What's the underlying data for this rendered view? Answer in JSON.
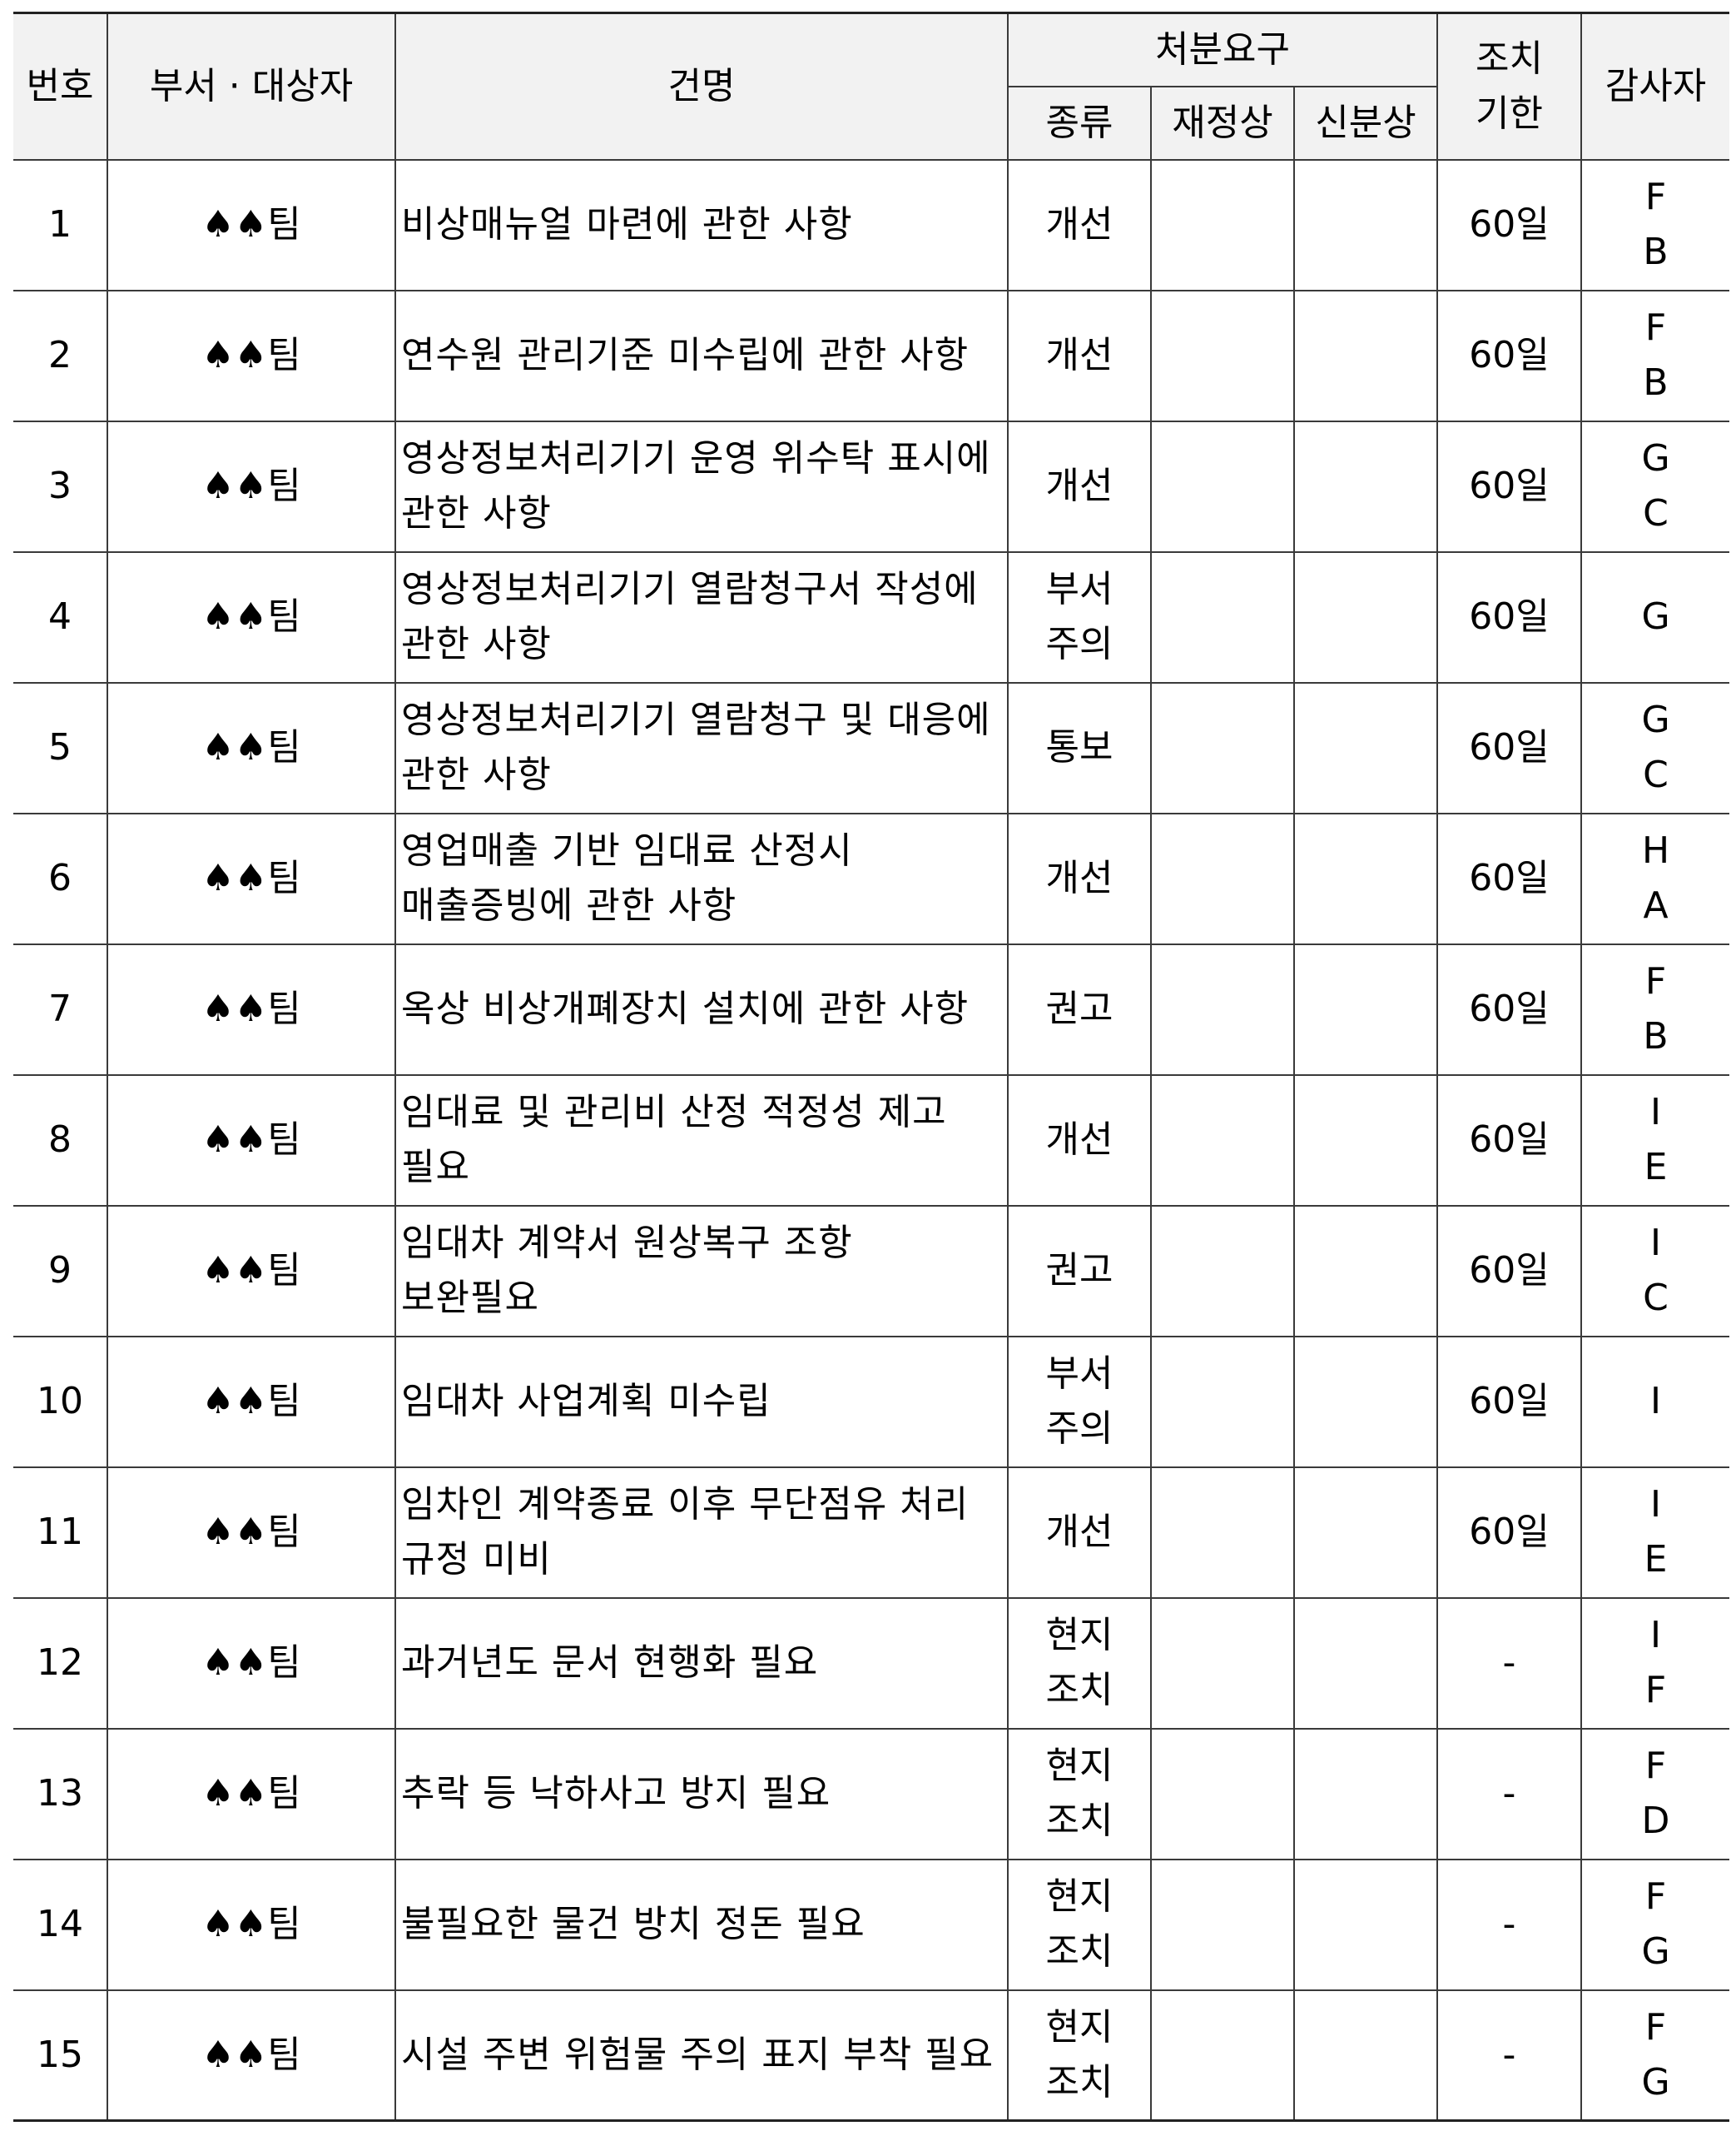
{
  "header": {
    "no": "번호",
    "dept": "부서 · 대상자",
    "title": "건명",
    "disposition": "처분요구",
    "kind": "종류",
    "financial": "재정상",
    "personnel": "신분상",
    "deadline": [
      "조치",
      "기한"
    ],
    "auditor": "감사자"
  },
  "rows": [
    {
      "no": "1",
      "dept": "♠♠팀",
      "title": "비상매뉴얼 마련에 관한 사항",
      "kind": [
        "개선"
      ],
      "financial": "",
      "personnel": "",
      "deadline": "60일",
      "auditors": [
        "F",
        "B"
      ]
    },
    {
      "no": "2",
      "dept": "♠♠팀",
      "title": "연수원 관리기준 미수립에 관한 사항",
      "kind": [
        "개선"
      ],
      "financial": "",
      "personnel": "",
      "deadline": "60일",
      "auditors": [
        "F",
        "B"
      ]
    },
    {
      "no": "3",
      "dept": "♠♠팀",
      "title": "영상정보처리기기 운영 위수탁 표시에 관한 사항",
      "kind": [
        "개선"
      ],
      "financial": "",
      "personnel": "",
      "deadline": "60일",
      "auditors": [
        "G",
        "C"
      ]
    },
    {
      "no": "4",
      "dept": "♠♠팀",
      "title": "영상정보처리기기 열람청구서 작성에 관한 사항",
      "kind": [
        "부서",
        "주의"
      ],
      "financial": "",
      "personnel": "",
      "deadline": "60일",
      "auditors": [
        "G"
      ]
    },
    {
      "no": "5",
      "dept": "♠♠팀",
      "title": "영상정보처리기기 열람청구 및 대응에 관한 사항",
      "kind": [
        "통보"
      ],
      "financial": "",
      "personnel": "",
      "deadline": "60일",
      "auditors": [
        "G",
        "C"
      ]
    },
    {
      "no": "6",
      "dept": "♠♠팀",
      "title": "영업매출 기반 임대료 산정시 매출증빙에 관한 사항",
      "kind": [
        "개선"
      ],
      "financial": "",
      "personnel": "",
      "deadline": "60일",
      "auditors": [
        "H",
        "A"
      ]
    },
    {
      "no": "7",
      "dept": "♠♠팀",
      "title": "옥상 비상개폐장치 설치에 관한 사항",
      "kind": [
        "권고"
      ],
      "financial": "",
      "personnel": "",
      "deadline": "60일",
      "auditors": [
        "F",
        "B"
      ]
    },
    {
      "no": "8",
      "dept": "♠♠팀",
      "title": "임대료 및 관리비 산정 적정성 제고 필요",
      "kind": [
        "개선"
      ],
      "financial": "",
      "personnel": "",
      "deadline": "60일",
      "auditors": [
        "I",
        "E"
      ]
    },
    {
      "no": "9",
      "dept": "♠♠팀",
      "title": "임대차 계약서 원상복구 조항 보완필요",
      "kind": [
        "권고"
      ],
      "financial": "",
      "personnel": "",
      "deadline": "60일",
      "auditors": [
        "I",
        "C"
      ]
    },
    {
      "no": "10",
      "dept": "♠♠팀",
      "title": "임대차 사업계획 미수립",
      "kind": [
        "부서",
        "주의"
      ],
      "financial": "",
      "personnel": "",
      "deadline": "60일",
      "auditors": [
        "I"
      ]
    },
    {
      "no": "11",
      "dept": "♠♠팀",
      "title": "임차인 계약종료 이후 무단점유 처리 규정 미비",
      "kind": [
        "개선"
      ],
      "financial": "",
      "personnel": "",
      "deadline": "60일",
      "auditors": [
        "I",
        "E"
      ]
    },
    {
      "no": "12",
      "dept": "♠♠팀",
      "title": "과거년도 문서 현행화 필요",
      "kind": [
        "현지",
        "조치"
      ],
      "financial": "",
      "personnel": "",
      "deadline": "-",
      "auditors": [
        "I",
        "F"
      ]
    },
    {
      "no": "13",
      "dept": "♠♠팀",
      "title": "추락 등 낙하사고 방지 필요",
      "kind": [
        "현지",
        "조치"
      ],
      "financial": "",
      "personnel": "",
      "deadline": "-",
      "auditors": [
        "F",
        "D"
      ]
    },
    {
      "no": "14",
      "dept": "♠♠팀",
      "title": "불필요한 물건 방치 정돈 필요",
      "kind": [
        "현지",
        "조치"
      ],
      "financial": "",
      "personnel": "",
      "deadline": "-",
      "auditors": [
        "F",
        "G"
      ]
    },
    {
      "no": "15",
      "dept": "♠♠팀",
      "title": "시설 주변 위험물 주의 표지 부착 필요",
      "kind": [
        "현지",
        "조치"
      ],
      "financial": "",
      "personnel": "",
      "deadline": "-",
      "auditors": [
        "F",
        "G"
      ]
    }
  ]
}
